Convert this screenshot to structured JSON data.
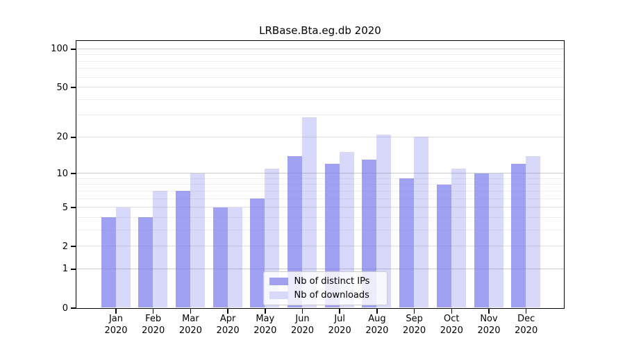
{
  "chart_data": {
    "type": "bar",
    "title": "LRBase.Bta.eg.db 2020",
    "categories": [
      "Jan",
      "Feb",
      "Mar",
      "Apr",
      "May",
      "Jun",
      "Jul",
      "Aug",
      "Sep",
      "Oct",
      "Nov",
      "Dec"
    ],
    "year_label": "2020",
    "series": [
      {
        "name": "Nb of distinct IPs",
        "values": [
          4,
          4,
          7,
          5,
          6,
          14,
          12,
          13,
          9,
          8,
          10,
          12
        ]
      },
      {
        "name": "Nb of downloads",
        "values": [
          5,
          7,
          10,
          5,
          11,
          29,
          15,
          21,
          20,
          11,
          10,
          14
        ]
      }
    ],
    "xlabel": "",
    "ylabel": "",
    "yscale": "log1p",
    "ylim": [
      0,
      116
    ],
    "yticks": [
      0,
      1,
      2,
      5,
      10,
      20,
      50,
      100
    ],
    "grid": {
      "major": [
        1,
        10,
        100
      ],
      "mid": [
        2,
        5,
        20,
        50
      ],
      "minor": [
        3,
        4,
        6,
        7,
        8,
        9,
        30,
        40,
        60,
        70,
        80,
        90
      ]
    },
    "legend_position": "lower center",
    "colors": {
      "ips_bar": "rgba(116,116,238,0.68)",
      "downloads_bar": "rgba(116,116,238,0.28)",
      "ips_swatch": "#a0a0ef",
      "downloads_swatch": "#d8d8fa",
      "grid_major": "#c9c9c9",
      "grid_mid": "#dfdfdf",
      "grid_minor": "#efefef",
      "spine": "#000000"
    }
  }
}
